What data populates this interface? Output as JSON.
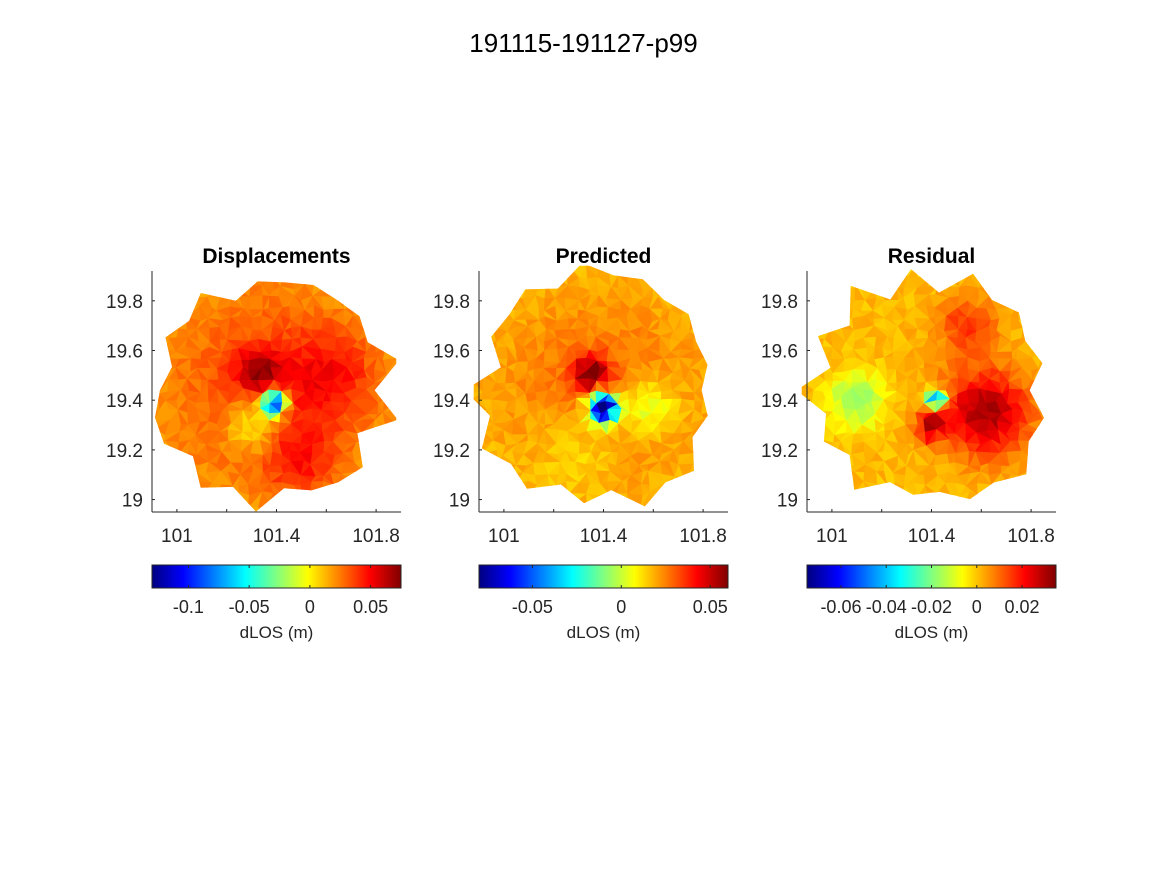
{
  "figure": {
    "title": "191115-191127-p99"
  },
  "colormap": "jet",
  "chart_data": [
    {
      "type": "heatmap",
      "title": "Displacements",
      "xlabel": "",
      "ylabel": "",
      "xlim": [
        100.9,
        101.9
      ],
      "ylim": [
        18.95,
        19.92
      ],
      "xticks": [
        101,
        101.4,
        101.8
      ],
      "xtick_labels": [
        "101",
        "101.4",
        "101.8"
      ],
      "yticks": [
        19,
        19.2,
        19.4,
        19.6,
        19.8
      ],
      "ytick_labels": [
        "19",
        "19.2",
        "19.4",
        "19.6",
        "19.8"
      ],
      "colorbar": {
        "label": "dLOS (m)",
        "clim": [
          -0.13,
          0.075
        ],
        "ticks": [
          -0.1,
          -0.05,
          0,
          0.05
        ],
        "tick_labels": [
          "-0.1",
          "-0.05",
          "0",
          "0.05"
        ]
      },
      "field": {
        "background": 0.045,
        "fade": 0.6,
        "sources": [
          {
            "lon": 101.39,
            "lat": 19.39,
            "amp": -0.14,
            "sigma": 0.035
          },
          {
            "lon": 101.33,
            "lat": 19.52,
            "amp": 0.035,
            "sigma": 0.06
          },
          {
            "lon": 101.62,
            "lat": 19.5,
            "amp": 0.02,
            "sigma": 0.12
          },
          {
            "lon": 101.5,
            "lat": 19.15,
            "amp": 0.02,
            "sigma": 0.1
          },
          {
            "lon": 101.3,
            "lat": 19.3,
            "amp": -0.03,
            "sigma": 0.08
          }
        ]
      }
    },
    {
      "type": "heatmap",
      "title": "Predicted",
      "xlabel": "",
      "ylabel": "",
      "xlim": [
        100.9,
        101.9
      ],
      "ylim": [
        18.95,
        19.92
      ],
      "xticks": [
        101,
        101.4,
        101.8
      ],
      "xtick_labels": [
        "101",
        "101.4",
        "101.8"
      ],
      "yticks": [
        19,
        19.2,
        19.4,
        19.6,
        19.8
      ],
      "ytick_labels": [
        "19",
        "19.2",
        "19.4",
        "19.6",
        "19.8"
      ],
      "colorbar": {
        "label": "dLOS (m)",
        "clim": [
          -0.08,
          0.06
        ],
        "ticks": [
          -0.05,
          0,
          0.05
        ],
        "tick_labels": [
          "-0.05",
          "0",
          "0.05"
        ]
      },
      "field": {
        "background": 0.03,
        "fade": 0.4,
        "sources": [
          {
            "lon": 101.4,
            "lat": 19.37,
            "amp": -0.12,
            "sigma": 0.04
          },
          {
            "lon": 101.35,
            "lat": 19.51,
            "amp": 0.035,
            "sigma": 0.05
          },
          {
            "lon": 101.58,
            "lat": 19.37,
            "amp": -0.02,
            "sigma": 0.08
          },
          {
            "lon": 101.3,
            "lat": 19.2,
            "amp": -0.01,
            "sigma": 0.12
          }
        ]
      }
    },
    {
      "type": "heatmap",
      "title": "Residual",
      "xlabel": "",
      "ylabel": "",
      "xlim": [
        100.9,
        101.9
      ],
      "ylim": [
        18.95,
        19.92
      ],
      "xticks": [
        101,
        101.4,
        101.8
      ],
      "xtick_labels": [
        "101",
        "101.4",
        "101.8"
      ],
      "yticks": [
        19,
        19.2,
        19.4,
        19.6,
        19.8
      ],
      "ytick_labels": [
        "19",
        "19.2",
        "19.4",
        "19.6",
        "19.8"
      ],
      "colorbar": {
        "label": "dLOS (m)",
        "clim": [
          -0.075,
          0.035
        ],
        "ticks": [
          -0.06,
          -0.04,
          -0.02,
          0,
          0.02
        ],
        "tick_labels": [
          "-0.06",
          "-0.04",
          "-0.02",
          "0",
          "0.02"
        ]
      },
      "field": {
        "background": 0.002,
        "fade": 0.5,
        "sources": [
          {
            "lon": 101.62,
            "lat": 19.35,
            "amp": 0.03,
            "sigma": 0.12
          },
          {
            "lon": 101.1,
            "lat": 19.4,
            "amp": -0.02,
            "sigma": 0.08
          },
          {
            "lon": 101.42,
            "lat": 19.41,
            "amp": -0.055,
            "sigma": 0.025
          },
          {
            "lon": 101.4,
            "lat": 19.3,
            "amp": 0.025,
            "sigma": 0.04
          },
          {
            "lon": 101.55,
            "lat": 19.7,
            "amp": 0.015,
            "sigma": 0.08
          }
        ]
      }
    }
  ]
}
